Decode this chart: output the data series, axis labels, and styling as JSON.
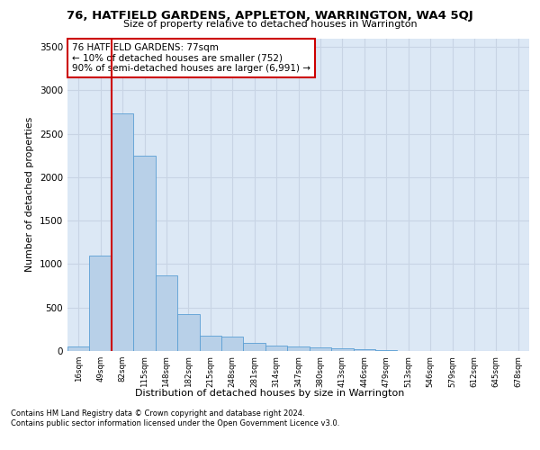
{
  "title1": "76, HATFIELD GARDENS, APPLETON, WARRINGTON, WA4 5QJ",
  "title2": "Size of property relative to detached houses in Warrington",
  "xlabel": "Distribution of detached houses by size in Warrington",
  "ylabel": "Number of detached properties",
  "footnote1": "Contains HM Land Registry data © Crown copyright and database right 2024.",
  "footnote2": "Contains public sector information licensed under the Open Government Licence v3.0.",
  "categories": [
    "16sqm",
    "49sqm",
    "82sqm",
    "115sqm",
    "148sqm",
    "182sqm",
    "215sqm",
    "248sqm",
    "281sqm",
    "314sqm",
    "347sqm",
    "380sqm",
    "413sqm",
    "446sqm",
    "479sqm",
    "513sqm",
    "546sqm",
    "579sqm",
    "612sqm",
    "645sqm",
    "678sqm"
  ],
  "values": [
    55,
    1100,
    2730,
    2250,
    870,
    420,
    175,
    170,
    95,
    65,
    50,
    45,
    30,
    22,
    15,
    0,
    0,
    0,
    0,
    0,
    0
  ],
  "bar_color": "#b8d0e8",
  "bar_edge_color": "#5a9fd4",
  "bar_width": 1.0,
  "grid_color": "#c8d4e4",
  "bg_color": "#dce8f5",
  "annotation_text": "76 HATFIELD GARDENS: 77sqm\n← 10% of detached houses are smaller (752)\n90% of semi-detached houses are larger (6,991) →",
  "annotation_box_color": "#ffffff",
  "annotation_box_edge_color": "#cc0000",
  "vline_x_index": 1.5,
  "vline_color": "#cc0000",
  "ylim": [
    0,
    3600
  ],
  "yticks": [
    0,
    500,
    1000,
    1500,
    2000,
    2500,
    3000,
    3500
  ]
}
